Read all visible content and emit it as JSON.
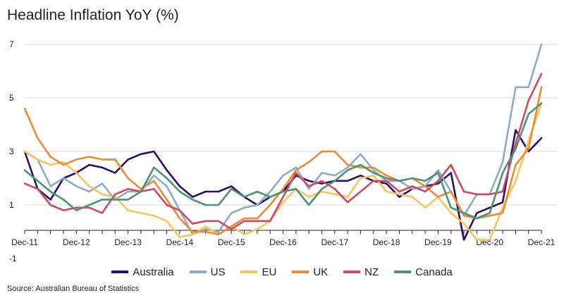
{
  "title": "Headline Inflation YoY (%)",
  "source": "Source: Australian Bureau of Statistics",
  "chart_data": {
    "type": "line",
    "title": "Headline Inflation YoY (%)",
    "xlabel": "",
    "ylabel": "",
    "x_start": "Dec-11",
    "x_end": "Dec-21",
    "ylim": [
      -1,
      7
    ],
    "y_ticks": [
      -1,
      1,
      3,
      5,
      7
    ],
    "x_ticks": [
      "Dec-11",
      "Dec-12",
      "Dec-13",
      "Dec-14",
      "Dec-15",
      "Dec-16",
      "Dec-17",
      "Dec-18",
      "Dec-19",
      "Dec-20",
      "Dec-21"
    ],
    "grid": "horizontal",
    "legend": "bottom",
    "x_quarters": [
      "Dec-11",
      "Mar-12",
      "Jun-12",
      "Sep-12",
      "Dec-12",
      "Mar-13",
      "Jun-13",
      "Sep-13",
      "Dec-13",
      "Mar-14",
      "Jun-14",
      "Sep-14",
      "Dec-14",
      "Mar-15",
      "Jun-15",
      "Sep-15",
      "Dec-15",
      "Mar-16",
      "Jun-16",
      "Sep-16",
      "Dec-16",
      "Mar-17",
      "Jun-17",
      "Sep-17",
      "Dec-17",
      "Mar-18",
      "Jun-18",
      "Sep-18",
      "Dec-18",
      "Mar-19",
      "Jun-19",
      "Sep-19",
      "Dec-19",
      "Mar-20",
      "Jun-20",
      "Sep-20",
      "Dec-20",
      "Mar-21",
      "Jun-21",
      "Sep-21",
      "Dec-21"
    ],
    "series": [
      {
        "name": "Australia",
        "color": "#2b0f6b",
        "values": [
          3.0,
          1.6,
          1.2,
          2.0,
          2.2,
          2.5,
          2.4,
          2.2,
          2.7,
          2.9,
          3.0,
          2.3,
          1.7,
          1.3,
          1.5,
          1.5,
          1.7,
          1.3,
          1.0,
          1.3,
          1.5,
          2.1,
          1.9,
          1.8,
          1.9,
          1.9,
          2.1,
          1.9,
          1.8,
          1.3,
          1.6,
          1.7,
          1.8,
          2.2,
          -0.3,
          0.7,
          0.9,
          1.1,
          3.8,
          3.0,
          3.5
        ]
      },
      {
        "name": "US",
        "color": "#8fa9cf",
        "values": [
          3.0,
          2.7,
          1.7,
          2.0,
          1.7,
          1.5,
          1.8,
          1.2,
          1.5,
          1.5,
          2.1,
          1.7,
          0.8,
          -0.1,
          0.1,
          0.0,
          0.7,
          0.9,
          1.0,
          1.5,
          2.1,
          2.4,
          1.6,
          2.2,
          2.1,
          2.4,
          2.9,
          2.3,
          1.9,
          1.9,
          1.6,
          1.7,
          2.3,
          1.5,
          0.6,
          1.4,
          1.4,
          2.6,
          5.4,
          5.4,
          7.0
        ]
      },
      {
        "name": "EU",
        "color": "#f9c55b",
        "values": [
          3.0,
          2.7,
          2.5,
          2.6,
          2.2,
          1.7,
          1.4,
          1.3,
          0.8,
          0.7,
          0.6,
          0.4,
          -0.2,
          -0.1,
          0.2,
          -0.1,
          0.2,
          -0.1,
          0.1,
          0.4,
          1.1,
          1.6,
          1.3,
          1.5,
          1.4,
          1.3,
          2.0,
          2.1,
          1.5,
          1.4,
          1.3,
          0.9,
          1.3,
          0.7,
          0.3,
          -0.3,
          -0.3,
          0.9,
          1.9,
          3.4,
          4.8
        ]
      },
      {
        "name": "UK",
        "color": "#f08a30",
        "values": [
          4.6,
          3.5,
          2.8,
          2.5,
          2.7,
          2.8,
          2.7,
          2.7,
          2.0,
          1.6,
          1.9,
          1.2,
          0.5,
          0.0,
          0.0,
          -0.1,
          0.2,
          0.5,
          0.5,
          1.0,
          1.6,
          2.3,
          2.6,
          3.0,
          3.0,
          2.5,
          2.4,
          2.4,
          2.1,
          1.9,
          2.0,
          1.7,
          1.3,
          1.5,
          0.6,
          0.5,
          0.6,
          0.7,
          2.5,
          3.1,
          5.4
        ]
      },
      {
        "name": "NZ",
        "color": "#cf4a5e",
        "values": [
          1.8,
          1.6,
          1.0,
          0.8,
          0.9,
          0.9,
          0.7,
          1.4,
          1.6,
          1.5,
          1.6,
          1.0,
          0.8,
          0.3,
          0.4,
          0.4,
          0.1,
          0.4,
          0.4,
          0.4,
          1.3,
          2.2,
          1.7,
          1.9,
          1.6,
          1.1,
          1.5,
          1.9,
          1.9,
          1.5,
          1.7,
          1.5,
          1.9,
          2.5,
          1.5,
          1.4,
          1.4,
          1.5,
          3.3,
          4.9,
          5.9
        ]
      },
      {
        "name": "Canada",
        "color": "#4a9477",
        "values": [
          2.3,
          1.9,
          1.5,
          1.2,
          0.8,
          1.0,
          1.2,
          1.2,
          1.2,
          1.5,
          2.4,
          2.0,
          1.5,
          1.2,
          1.0,
          1.0,
          1.6,
          1.3,
          1.5,
          1.3,
          1.5,
          1.6,
          1.0,
          1.6,
          1.9,
          2.3,
          2.5,
          2.2,
          2.0,
          1.9,
          2.0,
          1.9,
          2.2,
          0.9,
          0.7,
          0.5,
          0.7,
          2.2,
          3.1,
          4.4,
          4.8
        ]
      }
    ]
  }
}
